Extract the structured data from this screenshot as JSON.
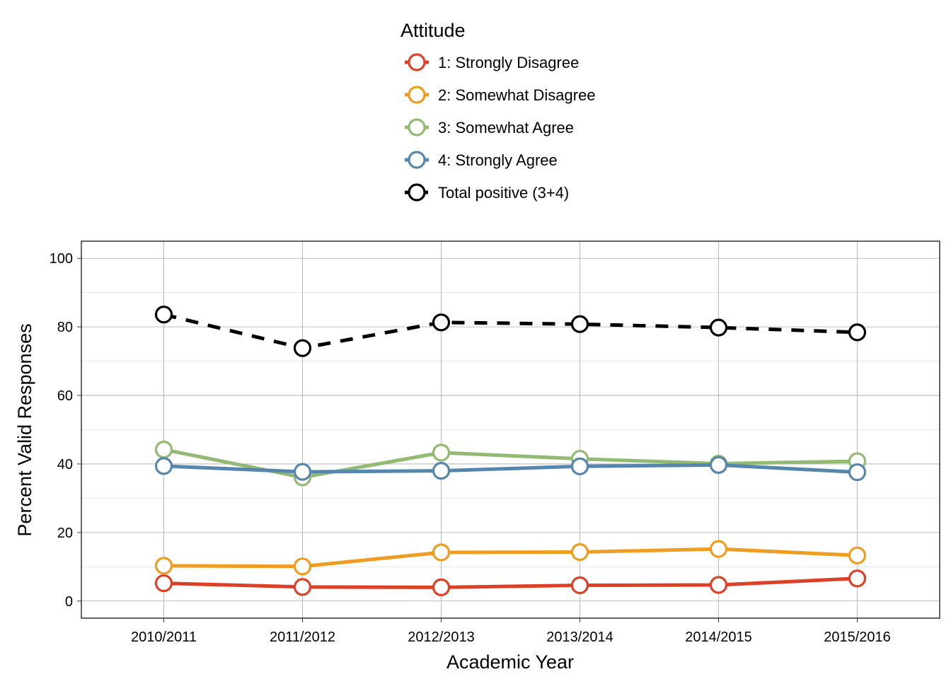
{
  "chart_data": {
    "type": "line",
    "title": "",
    "xlabel": "Academic Year",
    "ylabel": "Percent Valid Responses",
    "categories": [
      "2010/2011",
      "2011/2012",
      "2012/2013",
      "2013/2014",
      "2014/2015",
      "2015/2016"
    ],
    "ylim": [
      -5,
      105
    ],
    "yticks": [
      0,
      20,
      40,
      60,
      80,
      100
    ],
    "grid": true,
    "legend": {
      "title": "Attitude",
      "placement": "top"
    },
    "series": [
      {
        "name": "1: Strongly Disagree",
        "color": "#dc4128",
        "dashed": false,
        "values": [
          5.2,
          4.1,
          4.0,
          4.6,
          4.7,
          6.6
        ]
      },
      {
        "name": "2: Somewhat Disagree",
        "color": "#ee9d21",
        "dashed": false,
        "values": [
          10.3,
          10.1,
          14.2,
          14.3,
          15.2,
          13.3
        ]
      },
      {
        "name": "3: Somewhat Agree",
        "color": "#93ba73",
        "dashed": false,
        "values": [
          44.2,
          36.1,
          43.3,
          41.5,
          40.1,
          40.8
        ]
      },
      {
        "name": "4: Strongly Agree",
        "color": "#5686ad",
        "dashed": false,
        "values": [
          39.4,
          37.7,
          38.0,
          39.3,
          39.7,
          37.6
        ]
      },
      {
        "name": "Total positive (3+4)",
        "color": "#000000",
        "dashed": true,
        "values": [
          83.6,
          73.8,
          81.3,
          80.8,
          79.8,
          78.4
        ]
      }
    ]
  }
}
